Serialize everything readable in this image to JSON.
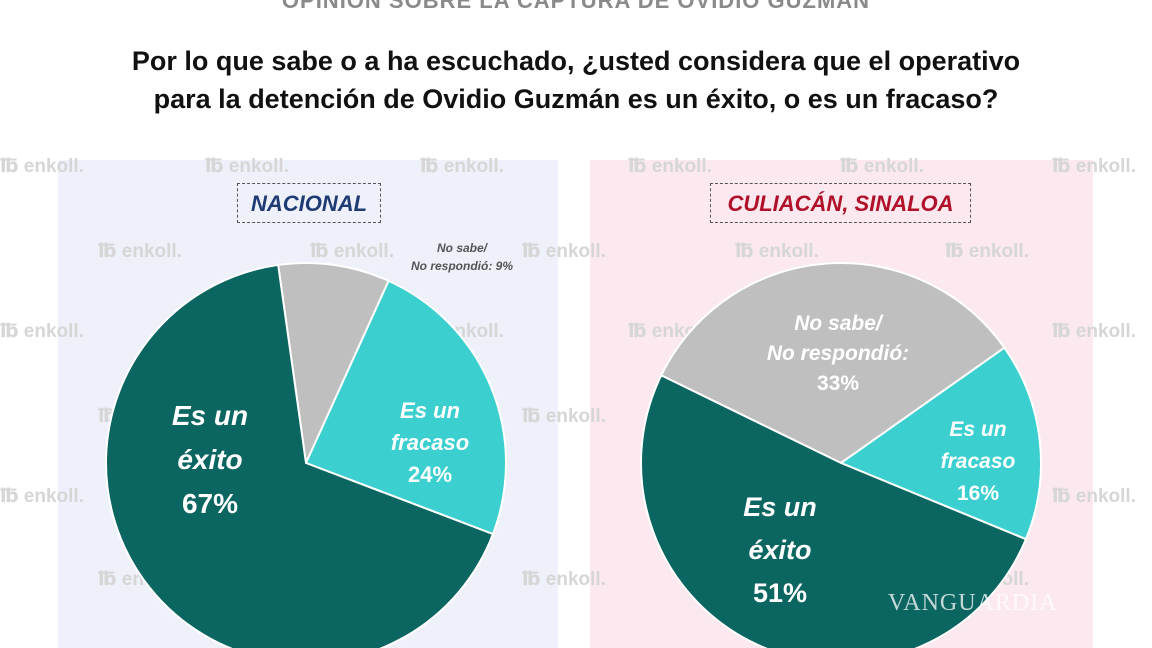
{
  "header": {
    "top_title": "OPINIÓN SOBRE LA CAPTURA DE OVIDIO GUZMÁN",
    "question_line1": "Por lo que sabe o a ha escuchado, ¿usted considera que el operativo",
    "question_line2": "para la detención de Ovidio Guzmán es un éxito, o es un fracaso?"
  },
  "watermark": {
    "brand": "enkoll.",
    "publisher": "VANGUARDIA"
  },
  "colors": {
    "exito": "#0b6560",
    "fracaso": "#3ccfcf",
    "no_sabe": "#bfbfbf",
    "nacional_label": "#1f3b73",
    "culiacan_label": "#b0102a"
  },
  "chart_data": [
    {
      "type": "pie",
      "title": "NACIONAL",
      "slices": [
        {
          "label": "No sabe/ No respondió",
          "label_lines": [
            "No sabe/",
            "No respondió: 9%"
          ],
          "value": 9,
          "color": "#bfbfbf"
        },
        {
          "label": "Es un fracaso",
          "label_lines": [
            "Es un",
            "fracaso",
            "24%"
          ],
          "value": 24,
          "color": "#3ccfcf"
        },
        {
          "label": "Es un éxito",
          "label_lines": [
            "Es un",
            "éxito",
            "67%"
          ],
          "value": 67,
          "color": "#0b6560"
        }
      ]
    },
    {
      "type": "pie",
      "title": "CULIACÁN, SINALOA",
      "slices": [
        {
          "label": "No sabe/ No respondió",
          "label_lines": [
            "No sabe/",
            "No respondió:",
            "33%"
          ],
          "value": 33,
          "color": "#bfbfbf"
        },
        {
          "label": "Es un fracaso",
          "label_lines": [
            "Es un",
            "fracaso",
            "16%"
          ],
          "value": 16,
          "color": "#3ccfcf"
        },
        {
          "label": "Es un éxito",
          "label_lines": [
            "Es un",
            "éxito",
            "51%"
          ],
          "value": 51,
          "color": "#0b6560"
        }
      ]
    }
  ]
}
